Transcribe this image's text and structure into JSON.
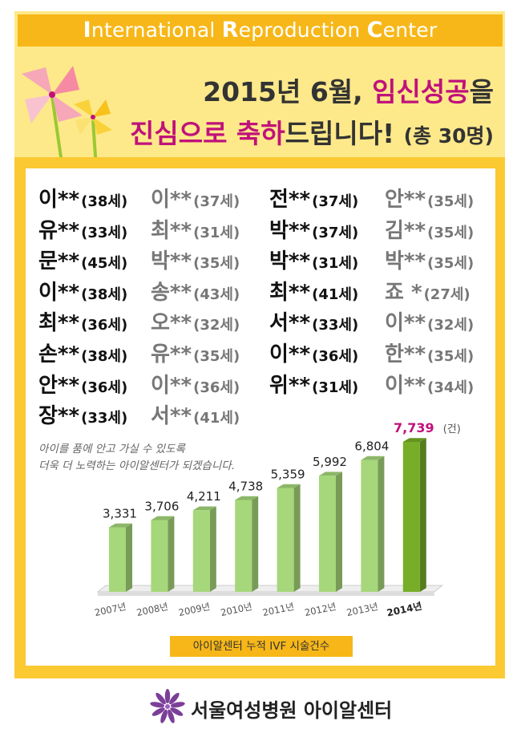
{
  "header": {
    "parts": [
      {
        "cap": "I",
        "rest": "nternational "
      },
      {
        "cap": "R",
        "rest": "eproduction "
      },
      {
        "cap": "C",
        "rest": "enter"
      }
    ]
  },
  "headline": {
    "line1_a": "2015년 6월, ",
    "line1_hl": "임신성공",
    "line1_b": "을",
    "line2_hl": "진심으로 축하",
    "line2_b": "드립니다! ",
    "line2_small": "(총 30명)"
  },
  "names": [
    [
      {
        "n": "이**",
        "a": "(38세)"
      },
      {
        "n": "이**",
        "a": "(37세)"
      },
      {
        "n": "전**",
        "a": "(37세)"
      },
      {
        "n": "안**",
        "a": "(35세)"
      }
    ],
    [
      {
        "n": "유**",
        "a": "(33세)"
      },
      {
        "n": "최**",
        "a": "(31세)"
      },
      {
        "n": "박**",
        "a": "(37세)"
      },
      {
        "n": "김**",
        "a": "(35세)"
      }
    ],
    [
      {
        "n": "문**",
        "a": "(45세)"
      },
      {
        "n": "박**",
        "a": "(35세)"
      },
      {
        "n": "박**",
        "a": "(31세)"
      },
      {
        "n": "박**",
        "a": "(35세)"
      }
    ],
    [
      {
        "n": "이**",
        "a": "(38세)"
      },
      {
        "n": "송**",
        "a": "(43세)"
      },
      {
        "n": "최**",
        "a": "(41세)"
      },
      {
        "n": "죠 *",
        "a": "(27세)"
      }
    ],
    [
      {
        "n": "최**",
        "a": "(36세)"
      },
      {
        "n": "오**",
        "a": "(32세)"
      },
      {
        "n": "서**",
        "a": "(33세)"
      },
      {
        "n": "이**",
        "a": "(32세)"
      }
    ],
    [
      {
        "n": "손**",
        "a": "(38세)"
      },
      {
        "n": "유**",
        "a": "(35세)"
      },
      {
        "n": "이**",
        "a": "(36세)"
      },
      {
        "n": "한**",
        "a": "(35세)"
      }
    ],
    [
      {
        "n": "안**",
        "a": "(36세)"
      },
      {
        "n": "이**",
        "a": "(36세)"
      },
      {
        "n": "위**",
        "a": "(31세)"
      },
      {
        "n": "이**",
        "a": "(34세)"
      }
    ],
    [
      {
        "n": "장**",
        "a": "(33세)"
      },
      {
        "n": "서**",
        "a": "(41세)"
      }
    ]
  ],
  "note": {
    "line1": "아이를 품에 안고 가실 수 있도록",
    "line2": "더욱 더 노력하는 아이알센터가 되겠습니다."
  },
  "chart_data": {
    "type": "bar",
    "categories": [
      "2007년",
      "2008년",
      "2009년",
      "2010년",
      "2011년",
      "2012년",
      "2013년",
      "2014년"
    ],
    "values": [
      3331,
      3706,
      4211,
      4738,
      5359,
      5992,
      6804,
      7739
    ],
    "value_labels": [
      "3,331",
      "3,706",
      "4,211",
      "4,738",
      "5,359",
      "5,992",
      "6,804",
      "7,739"
    ],
    "unit": "(건)",
    "highlight_index": 7,
    "colors": {
      "bar": "#a6d77a",
      "bar_highlight": "#77ad27",
      "highlight_label": "#c0117b"
    },
    "caption": "아이알센터 누적 IVF 시술건수"
  },
  "footer": {
    "text": "서울여성병원 아이알센터"
  }
}
